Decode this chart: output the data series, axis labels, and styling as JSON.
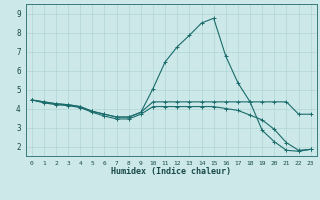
{
  "xlabel": "Humidex (Indice chaleur)",
  "bg_color": "#cce8e8",
  "grid_color": "#b0d4d4",
  "line_color": "#1a6b6b",
  "xlim": [
    -0.5,
    23.5
  ],
  "ylim": [
    1.5,
    9.5
  ],
  "xtick_labels": [
    "0",
    "1",
    "2",
    "3",
    "4",
    "5",
    "6",
    "7",
    "8",
    "9",
    "10",
    "11",
    "12",
    "13",
    "14",
    "15",
    "16",
    "17",
    "18",
    "19",
    "20",
    "21",
    "22",
    "23"
  ],
  "xticks": [
    0,
    1,
    2,
    3,
    4,
    5,
    6,
    7,
    8,
    9,
    10,
    11,
    12,
    13,
    14,
    15,
    16,
    17,
    18,
    19,
    20,
    21,
    22,
    23
  ],
  "yticks": [
    2,
    3,
    4,
    5,
    6,
    7,
    8,
    9
  ],
  "line1_x": [
    0,
    1,
    2,
    3,
    4,
    5,
    6,
    7,
    8,
    9,
    10,
    11,
    12,
    13,
    14,
    15,
    16,
    17,
    18,
    19,
    20,
    21,
    22,
    23
  ],
  "line1_y": [
    4.45,
    4.35,
    4.25,
    4.2,
    4.1,
    3.85,
    3.7,
    3.55,
    3.55,
    3.8,
    4.35,
    4.35,
    4.35,
    4.35,
    4.35,
    4.35,
    4.35,
    4.35,
    4.35,
    4.35,
    4.35,
    4.35,
    3.7,
    3.7
  ],
  "line2_x": [
    0,
    1,
    2,
    3,
    4,
    5,
    6,
    7,
    8,
    9,
    10,
    11,
    12,
    13,
    14,
    15,
    16,
    17,
    18,
    19,
    20,
    21,
    22,
    23
  ],
  "line2_y": [
    4.45,
    4.35,
    4.25,
    4.2,
    4.1,
    3.85,
    3.7,
    3.55,
    3.55,
    3.8,
    5.05,
    6.45,
    7.25,
    7.85,
    8.5,
    8.75,
    6.75,
    5.35,
    4.35,
    2.85,
    2.25,
    1.8,
    1.75,
    1.85
  ],
  "line3_x": [
    0,
    1,
    2,
    3,
    4,
    5,
    6,
    7,
    8,
    9,
    10,
    11,
    12,
    13,
    14,
    15,
    16,
    17,
    18,
    19,
    20,
    21,
    22,
    23
  ],
  "line3_y": [
    4.45,
    4.3,
    4.2,
    4.15,
    4.05,
    3.8,
    3.6,
    3.45,
    3.45,
    3.7,
    4.1,
    4.1,
    4.1,
    4.1,
    4.1,
    4.1,
    4.0,
    3.9,
    3.65,
    3.4,
    2.9,
    2.2,
    1.8,
    1.85
  ]
}
